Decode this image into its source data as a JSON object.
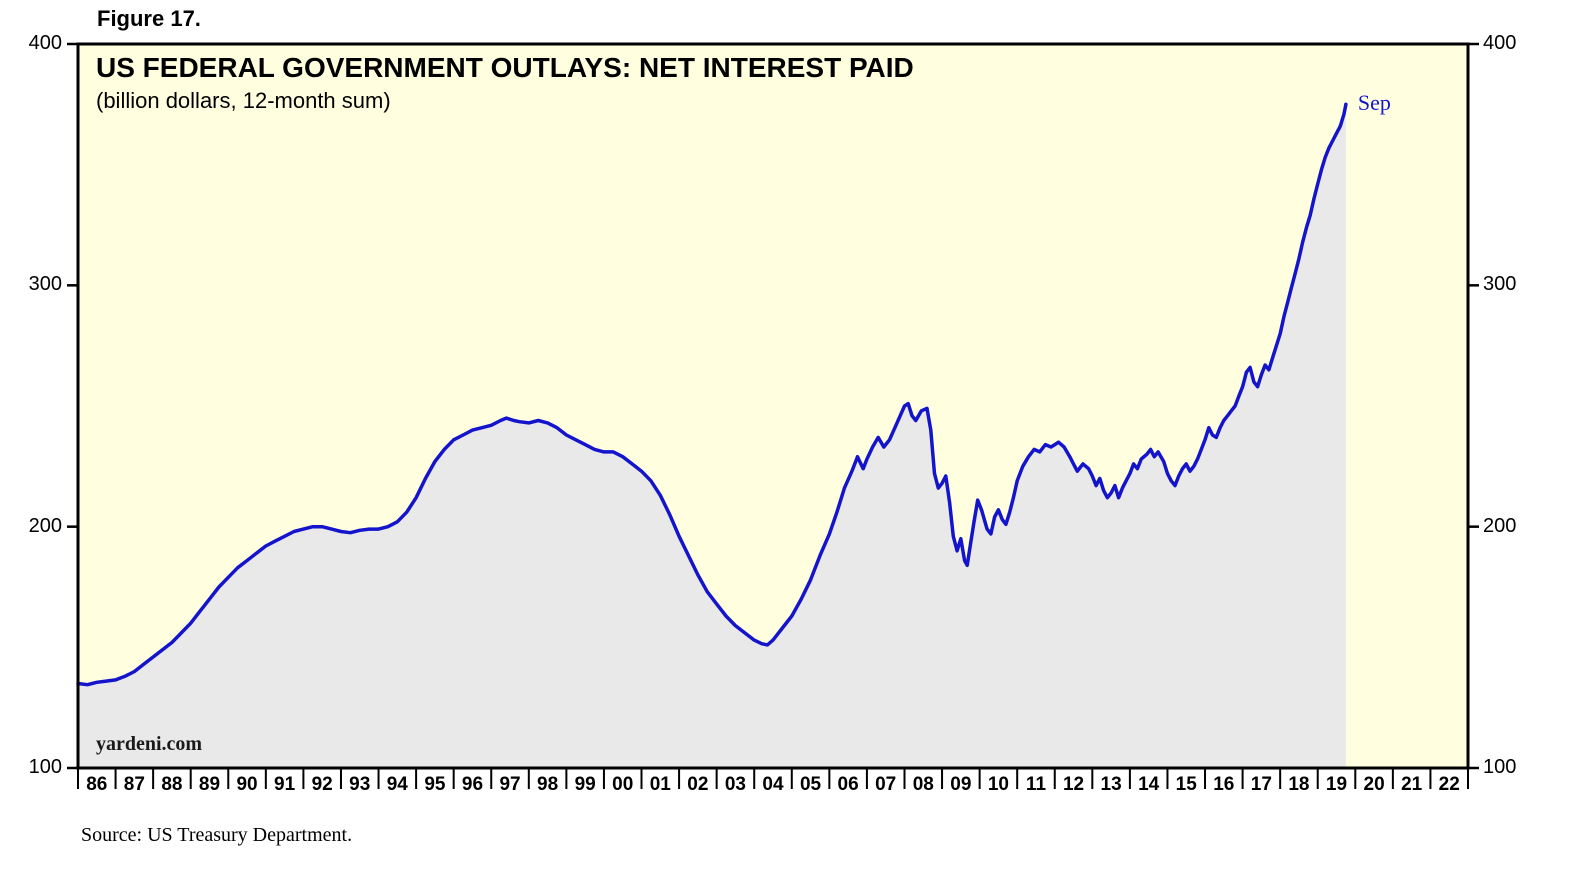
{
  "figure_label": "Figure 17.",
  "source_note": "Source: US Treasury Department.",
  "chart_data": {
    "type": "line",
    "title": "US FEDERAL GOVERNMENT OUTLAYS: NET INTEREST PAID",
    "subtitle": "(billion dollars, 12-month sum)",
    "watermark": "yardeni.com",
    "end_label": "Sep",
    "xlabel": "",
    "ylabel": "billion dollars",
    "x_range": [
      1986,
      2023
    ],
    "y_range": [
      100,
      400
    ],
    "y_ticks": [
      100,
      200,
      300,
      400
    ],
    "x_tick_labels": [
      "86",
      "87",
      "88",
      "89",
      "90",
      "91",
      "92",
      "93",
      "94",
      "95",
      "96",
      "97",
      "98",
      "99",
      "00",
      "01",
      "02",
      "03",
      "04",
      "05",
      "06",
      "07",
      "08",
      "09",
      "10",
      "11",
      "12",
      "13",
      "14",
      "15",
      "16",
      "17",
      "18",
      "19",
      "20",
      "21",
      "22"
    ],
    "grid": false,
    "legend_position": "none",
    "colors": {
      "line": "#1414CC",
      "annotation": "#1414CC",
      "plot_bg": "#FFFFE0",
      "area_fill": "#E9E9E9",
      "border": "#000000"
    },
    "series": [
      {
        "name": "US Federal Government Outlays: Net Interest Paid (billion dollars, 12-month sum)",
        "points": [
          [
            1986.0,
            135
          ],
          [
            1986.25,
            134.5
          ],
          [
            1986.5,
            135.5
          ],
          [
            1986.75,
            136
          ],
          [
            1987.0,
            136.5
          ],
          [
            1987.25,
            138
          ],
          [
            1987.5,
            140
          ],
          [
            1987.75,
            143
          ],
          [
            1988.0,
            146
          ],
          [
            1988.25,
            149
          ],
          [
            1988.5,
            152
          ],
          [
            1988.75,
            156
          ],
          [
            1989.0,
            160
          ],
          [
            1989.25,
            165
          ],
          [
            1989.5,
            170
          ],
          [
            1989.75,
            175
          ],
          [
            1990.0,
            179
          ],
          [
            1990.25,
            183
          ],
          [
            1990.5,
            186
          ],
          [
            1990.75,
            189
          ],
          [
            1991.0,
            192
          ],
          [
            1991.25,
            194
          ],
          [
            1991.5,
            196
          ],
          [
            1991.75,
            198
          ],
          [
            1992.0,
            199
          ],
          [
            1992.25,
            200
          ],
          [
            1992.5,
            200
          ],
          [
            1992.75,
            199
          ],
          [
            1993.0,
            198
          ],
          [
            1993.25,
            197.5
          ],
          [
            1993.5,
            198.5
          ],
          [
            1993.75,
            199
          ],
          [
            1994.0,
            199
          ],
          [
            1994.25,
            200
          ],
          [
            1994.5,
            202
          ],
          [
            1994.75,
            206
          ],
          [
            1995.0,
            212
          ],
          [
            1995.25,
            220
          ],
          [
            1995.5,
            227
          ],
          [
            1995.75,
            232
          ],
          [
            1996.0,
            236
          ],
          [
            1996.25,
            238
          ],
          [
            1996.5,
            240
          ],
          [
            1996.75,
            241
          ],
          [
            1997.0,
            242
          ],
          [
            1997.25,
            244
          ],
          [
            1997.4,
            245
          ],
          [
            1997.6,
            244
          ],
          [
            1997.75,
            243.5
          ],
          [
            1998.0,
            243
          ],
          [
            1998.25,
            244
          ],
          [
            1998.5,
            243
          ],
          [
            1998.75,
            241
          ],
          [
            1999.0,
            238
          ],
          [
            1999.25,
            236
          ],
          [
            1999.5,
            234
          ],
          [
            1999.75,
            232
          ],
          [
            2000.0,
            231
          ],
          [
            2000.25,
            231
          ],
          [
            2000.5,
            229
          ],
          [
            2000.75,
            226
          ],
          [
            2001.0,
            223
          ],
          [
            2001.25,
            219
          ],
          [
            2001.5,
            213
          ],
          [
            2001.75,
            205
          ],
          [
            2002.0,
            196
          ],
          [
            2002.25,
            188
          ],
          [
            2002.5,
            180
          ],
          [
            2002.75,
            173
          ],
          [
            2003.0,
            168
          ],
          [
            2003.25,
            163
          ],
          [
            2003.5,
            159
          ],
          [
            2003.75,
            156
          ],
          [
            2004.0,
            153
          ],
          [
            2004.2,
            151.5
          ],
          [
            2004.35,
            151
          ],
          [
            2004.5,
            153
          ],
          [
            2004.75,
            158
          ],
          [
            2005.0,
            163
          ],
          [
            2005.25,
            170
          ],
          [
            2005.5,
            178
          ],
          [
            2005.75,
            188
          ],
          [
            2006.0,
            197
          ],
          [
            2006.2,
            206
          ],
          [
            2006.4,
            216
          ],
          [
            2006.6,
            223
          ],
          [
            2006.75,
            229
          ],
          [
            2006.9,
            224
          ],
          [
            2007.0,
            228
          ],
          [
            2007.15,
            233
          ],
          [
            2007.3,
            237
          ],
          [
            2007.45,
            233
          ],
          [
            2007.6,
            236
          ],
          [
            2007.8,
            243
          ],
          [
            2008.0,
            250
          ],
          [
            2008.1,
            251
          ],
          [
            2008.2,
            246
          ],
          [
            2008.3,
            244
          ],
          [
            2008.45,
            248
          ],
          [
            2008.6,
            249
          ],
          [
            2008.7,
            240
          ],
          [
            2008.8,
            222
          ],
          [
            2008.9,
            216
          ],
          [
            2009.0,
            218
          ],
          [
            2009.1,
            221
          ],
          [
            2009.2,
            210
          ],
          [
            2009.3,
            196
          ],
          [
            2009.4,
            190
          ],
          [
            2009.5,
            195
          ],
          [
            2009.6,
            186
          ],
          [
            2009.67,
            184
          ],
          [
            2009.75,
            192
          ],
          [
            2009.85,
            202
          ],
          [
            2009.95,
            211
          ],
          [
            2010.05,
            207
          ],
          [
            2010.2,
            199
          ],
          [
            2010.3,
            197
          ],
          [
            2010.4,
            204
          ],
          [
            2010.5,
            207
          ],
          [
            2010.6,
            203
          ],
          [
            2010.7,
            201
          ],
          [
            2010.8,
            206
          ],
          [
            2010.9,
            212
          ],
          [
            2011.0,
            219
          ],
          [
            2011.15,
            225
          ],
          [
            2011.3,
            229
          ],
          [
            2011.45,
            232
          ],
          [
            2011.6,
            231
          ],
          [
            2011.75,
            234
          ],
          [
            2011.9,
            233
          ],
          [
            2012.0,
            234
          ],
          [
            2012.1,
            235
          ],
          [
            2012.25,
            233
          ],
          [
            2012.4,
            229
          ],
          [
            2012.5,
            226
          ],
          [
            2012.6,
            223
          ],
          [
            2012.75,
            226
          ],
          [
            2012.9,
            224
          ],
          [
            2013.0,
            221
          ],
          [
            2013.1,
            217
          ],
          [
            2013.2,
            220
          ],
          [
            2013.3,
            215
          ],
          [
            2013.4,
            212
          ],
          [
            2013.5,
            214
          ],
          [
            2013.6,
            217
          ],
          [
            2013.7,
            212
          ],
          [
            2013.8,
            216
          ],
          [
            2013.9,
            219
          ],
          [
            2014.0,
            222
          ],
          [
            2014.1,
            226
          ],
          [
            2014.2,
            224
          ],
          [
            2014.3,
            228
          ],
          [
            2014.45,
            230
          ],
          [
            2014.55,
            232
          ],
          [
            2014.65,
            229
          ],
          [
            2014.75,
            231
          ],
          [
            2014.9,
            227
          ],
          [
            2015.0,
            222
          ],
          [
            2015.1,
            219
          ],
          [
            2015.2,
            217
          ],
          [
            2015.3,
            221
          ],
          [
            2015.4,
            224
          ],
          [
            2015.5,
            226
          ],
          [
            2015.6,
            223
          ],
          [
            2015.7,
            225
          ],
          [
            2015.8,
            228
          ],
          [
            2015.9,
            232
          ],
          [
            2016.0,
            236
          ],
          [
            2016.1,
            241
          ],
          [
            2016.2,
            238
          ],
          [
            2016.3,
            237
          ],
          [
            2016.4,
            241
          ],
          [
            2016.5,
            244
          ],
          [
            2016.6,
            246
          ],
          [
            2016.7,
            248
          ],
          [
            2016.8,
            250
          ],
          [
            2016.9,
            254
          ],
          [
            2017.0,
            258
          ],
          [
            2017.1,
            264
          ],
          [
            2017.2,
            266
          ],
          [
            2017.3,
            260
          ],
          [
            2017.4,
            258
          ],
          [
            2017.5,
            263
          ],
          [
            2017.6,
            267
          ],
          [
            2017.7,
            265
          ],
          [
            2017.8,
            270
          ],
          [
            2017.9,
            275
          ],
          [
            2018.0,
            280
          ],
          [
            2018.1,
            287
          ],
          [
            2018.2,
            293
          ],
          [
            2018.3,
            299
          ],
          [
            2018.4,
            305
          ],
          [
            2018.5,
            311
          ],
          [
            2018.6,
            318
          ],
          [
            2018.7,
            324
          ],
          [
            2018.8,
            329
          ],
          [
            2018.9,
            336
          ],
          [
            2019.0,
            342
          ],
          [
            2019.1,
            348
          ],
          [
            2019.2,
            353
          ],
          [
            2019.3,
            357
          ],
          [
            2019.4,
            360
          ],
          [
            2019.5,
            363
          ],
          [
            2019.6,
            366
          ],
          [
            2019.7,
            371
          ],
          [
            2019.75,
            375
          ]
        ]
      }
    ]
  }
}
